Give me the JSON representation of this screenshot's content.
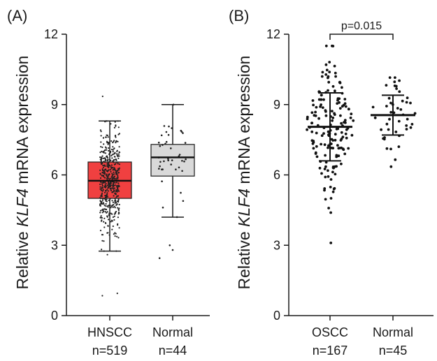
{
  "figure": {
    "panels": [
      {
        "label": "(A)",
        "ylabel_prefix": "Relative ",
        "ylabel_gene": "KLF4",
        "ylabel_suffix": " mRNA expression"
      },
      {
        "label": "(B)",
        "ylabel_prefix": "Relative ",
        "ylabel_gene": "KLF4",
        "ylabel_suffix": " mRNA expression"
      }
    ]
  },
  "chart_data": [
    {
      "type": "box",
      "panel": "(A)",
      "ylabel": "Relative KLF4 mRNA expression",
      "ylim": [
        0,
        12
      ],
      "yticks": [
        "0",
        "3",
        "6",
        "9",
        "12"
      ],
      "categories": [
        {
          "name": "HNSCC",
          "n_label": "n=519",
          "n": 519,
          "color": "#f04040",
          "whisker_low": 2.75,
          "q1": 5.0,
          "median": 5.75,
          "q3": 6.55,
          "whisker_high": 8.3,
          "outliers": [
            0.85,
            0.95,
            2.6,
            9.35
          ]
        },
        {
          "name": "Normal",
          "n_label": "n=44",
          "n": 44,
          "color": "#d9d9d9",
          "whisker_low": 4.2,
          "q1": 5.95,
          "median": 6.75,
          "q3": 7.3,
          "whisker_high": 9.0,
          "outliers": [
            2.45,
            2.8,
            3.0
          ]
        }
      ],
      "show_points": true
    },
    {
      "type": "scatter",
      "panel": "(B)",
      "ylabel": "Relative KLF4 mRNA expression",
      "ylim": [
        0,
        12
      ],
      "yticks": [
        "0",
        "3",
        "6",
        "9",
        "12"
      ],
      "categories": [
        {
          "name": "OSCC",
          "n_label": "n=167",
          "n": 167,
          "mean": 8.05,
          "sd_low": 6.6,
          "sd_high": 9.5,
          "min": 3.1,
          "max": 11.5
        },
        {
          "name": "Normal",
          "n_label": "n=45",
          "n": 45,
          "mean": 8.55,
          "sd_low": 7.7,
          "sd_high": 9.4,
          "min": 6.35,
          "max": 10.15
        }
      ],
      "annotation": {
        "text": "p=0.015",
        "between": [
          "OSCC",
          "Normal"
        ],
        "y": 12.0
      }
    }
  ]
}
